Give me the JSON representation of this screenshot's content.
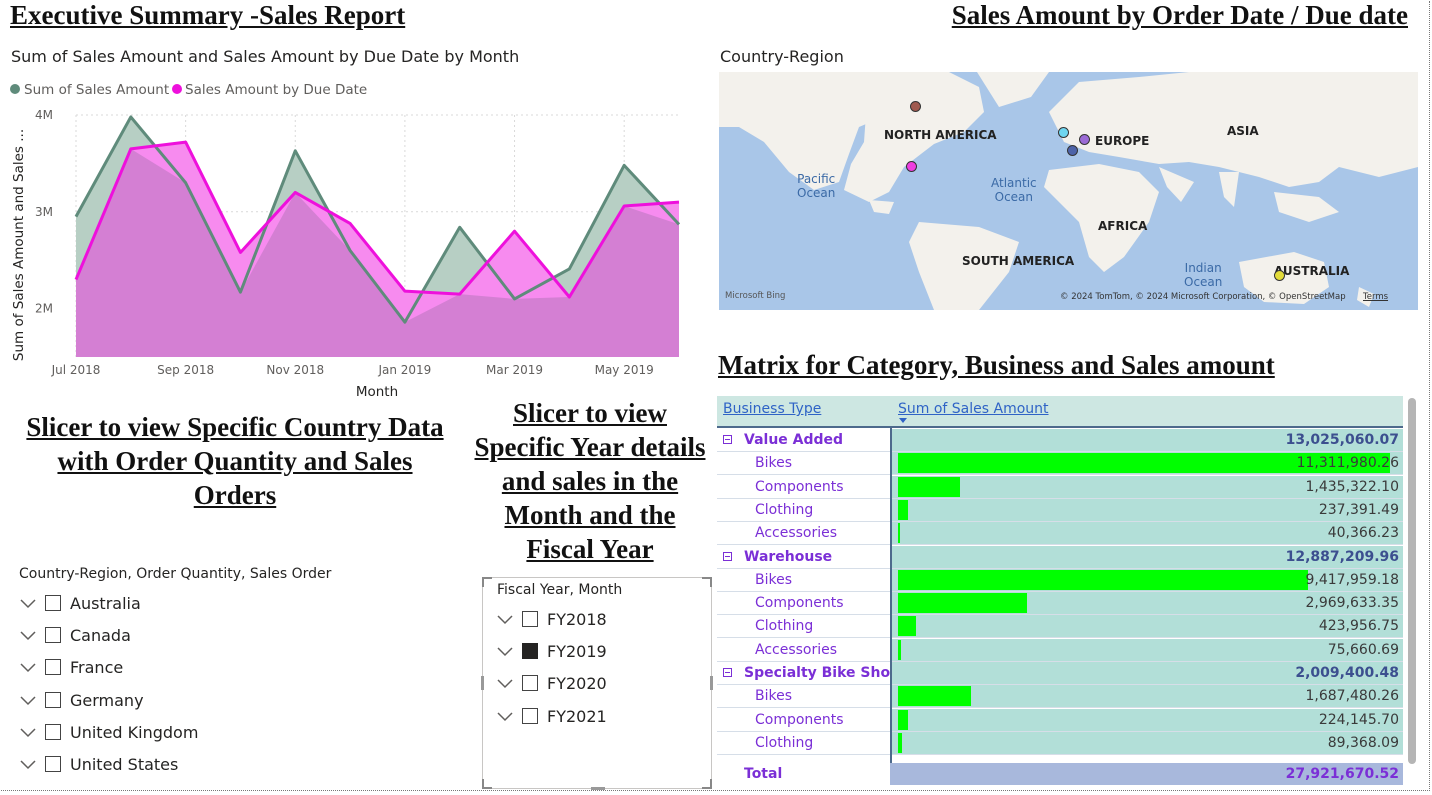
{
  "headings": {
    "left_title": "Executive Summary -Sales Report",
    "right_title": "Sales Amount by Order Date / Due date",
    "matrix_title": "Matrix for Category, Business and Sales amount",
    "country_slicer_heading": "Slicer to view Specific Country Data with Order Quantity and Sales Orders",
    "year_slicer_heading": "Slicer to view Specific Year details and sales in the Month and the Fiscal Year"
  },
  "area_chart": {
    "title": "Sum of Sales Amount and Sales Amount by Due Date by Month",
    "legend": [
      "Sum of Sales Amount",
      "Sales Amount by Due Date"
    ],
    "ylabel": "Sum of Sales Amount and Sales ...",
    "xlabel": "Month"
  },
  "chart_data": {
    "type": "area",
    "categories": [
      "Jul 2018",
      "Aug 2018",
      "Sep 2018",
      "Oct 2018",
      "Nov 2018",
      "Dec 2018",
      "Jan 2019",
      "Feb 2019",
      "Mar 2019",
      "Apr 2019",
      "May 2019",
      "Jun 2019"
    ],
    "x_tick_labels": [
      "Jul 2018",
      "Sep 2018",
      "Nov 2018",
      "Jan 2019",
      "Mar 2019",
      "May 2019"
    ],
    "y_tick_labels": [
      "4M",
      "3M",
      "2M"
    ],
    "ylim": [
      1.5,
      4.0
    ],
    "series": [
      {
        "name": "Sum of Sales Amount",
        "color": "#5f8b7b",
        "fill": "#b7cfc4",
        "values": [
          2.95,
          3.98,
          3.3,
          2.17,
          3.63,
          2.6,
          1.86,
          2.84,
          2.1,
          2.41,
          3.48,
          2.87
        ]
      },
      {
        "name": "Sales Amount by Due Date",
        "color": "#ee10dc",
        "fill": "#f78bef",
        "values": [
          2.3,
          3.65,
          3.72,
          2.58,
          3.2,
          2.88,
          2.18,
          2.15,
          2.8,
          2.12,
          3.06,
          3.1
        ]
      }
    ],
    "overlap_fill": "#d47fd3",
    "grid": true
  },
  "map": {
    "title": "Country-Region",
    "labels": [
      "NORTH AMERICA",
      "EUROPE",
      "ASIA",
      "AFRICA",
      "SOUTH AMERICA",
      "AUSTRALIA"
    ],
    "oceans": [
      "Pacific\nOcean",
      "Atlantic\nOcean",
      "Indian\nOcean"
    ],
    "bubble_colors": [
      "#a05a4f",
      "#ee3ee0",
      "#6fd6f0",
      "#9b6bd6",
      "#4d63a8",
      "#e3dc3a"
    ],
    "attribution": "© 2024 TomTom, © 2024 Microsoft Corporation, © OpenStreetMap",
    "terms": "Terms",
    "bing": "Microsoft Bing"
  },
  "country_slicer": {
    "title": "Country-Region, Order Quantity, Sales Order",
    "items": [
      {
        "label": "Australia",
        "checked": false
      },
      {
        "label": "Canada",
        "checked": false
      },
      {
        "label": "France",
        "checked": false
      },
      {
        "label": "Germany",
        "checked": false
      },
      {
        "label": "United Kingdom",
        "checked": false
      },
      {
        "label": "United States",
        "checked": false
      }
    ]
  },
  "year_slicer": {
    "title": "Fiscal Year, Month",
    "items": [
      {
        "label": "FY2018",
        "checked": false
      },
      {
        "label": "FY2019",
        "checked": true
      },
      {
        "label": "FY2020",
        "checked": false
      },
      {
        "label": "FY2021",
        "checked": false
      }
    ]
  },
  "matrix": {
    "col_business": "Business Type",
    "col_sales": "Sum of Sales Amount",
    "rows": [
      {
        "name": "Value Added",
        "value": "13,025,060.07",
        "group": true
      },
      {
        "name": "Bikes",
        "value": "11,311,980.26",
        "amount": 11311980.26,
        "group": false
      },
      {
        "name": "Components",
        "value": "1,435,322.10",
        "amount": 1435322.1,
        "group": false
      },
      {
        "name": "Clothing",
        "value": "237,391.49",
        "amount": 237391.49,
        "group": false
      },
      {
        "name": "Accessories",
        "value": "40,366.23",
        "amount": 40366.23,
        "group": false
      },
      {
        "name": "Warehouse",
        "value": "12,887,209.96",
        "group": true
      },
      {
        "name": "Bikes",
        "value": "9,417,959.18",
        "amount": 9417959.18,
        "group": false
      },
      {
        "name": "Components",
        "value": "2,969,633.35",
        "amount": 2969633.35,
        "group": false
      },
      {
        "name": "Clothing",
        "value": "423,956.75",
        "amount": 423956.75,
        "group": false
      },
      {
        "name": "Accessories",
        "value": "75,660.69",
        "amount": 75660.69,
        "group": false
      },
      {
        "name": "Specialty Bike Shop",
        "value": "2,009,400.48",
        "group": true
      },
      {
        "name": "Bikes",
        "value": "1,687,480.26",
        "amount": 1687480.26,
        "group": false
      },
      {
        "name": "Components",
        "value": "224,145.70",
        "amount": 224145.7,
        "group": false
      },
      {
        "name": "Clothing",
        "value": "89,368.09",
        "amount": 89368.09,
        "group": false
      }
    ],
    "total_label": "Total",
    "total_value": "27,921,670.52"
  }
}
